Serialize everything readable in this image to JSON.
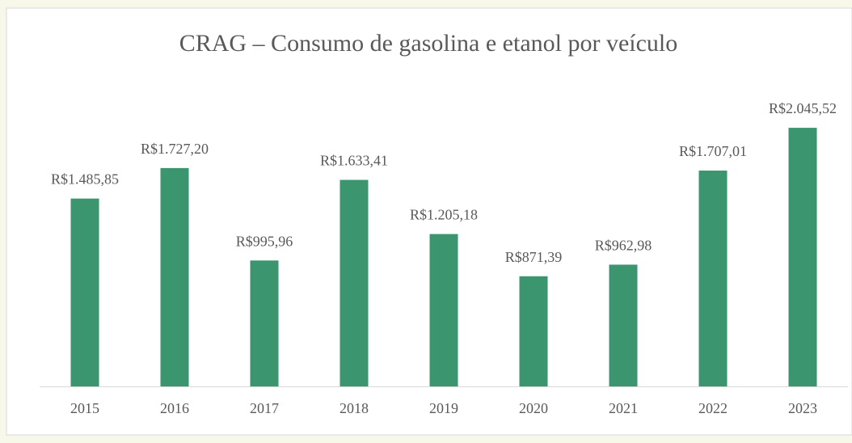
{
  "chart_data": {
    "type": "bar",
    "title": "CRAG – Consumo de gasolina e etanol por veículo",
    "categories": [
      "2015",
      "2016",
      "2017",
      "2018",
      "2019",
      "2020",
      "2021",
      "2022",
      "2023"
    ],
    "values": [
      1485.85,
      1727.2,
      995.96,
      1633.41,
      1205.18,
      871.39,
      962.98,
      1707.01,
      2045.52
    ],
    "value_labels": [
      "R$1.485,85",
      "R$1.727,20",
      "R$995,96",
      "R$1.633,41",
      "R$1.205,18",
      "R$871,39",
      "R$962,98",
      "R$1.707,01",
      "R$2.045,52"
    ],
    "color": "#3b9670",
    "ylim": [
      0,
      2500
    ]
  }
}
